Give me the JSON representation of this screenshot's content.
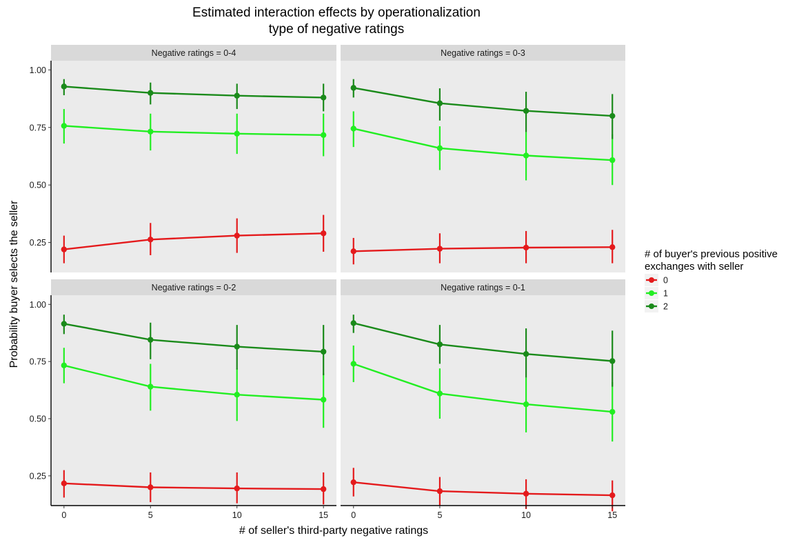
{
  "chart_data": {
    "type": "line",
    "title_lines": [
      "Estimated interaction effects by operationalization",
      "type of negative ratings"
    ],
    "xlabel": "# of seller's third-party negative ratings",
    "ylabel": "Probability buyer selects the seller",
    "x": [
      0,
      5,
      10,
      15
    ],
    "x_ticks": [
      "0",
      "5",
      "10",
      "15"
    ],
    "y_ticks": [
      "0.25",
      "0.50",
      "0.75",
      "1.00"
    ],
    "y_tick_values": [
      0.25,
      0.5,
      0.75,
      1.0
    ],
    "xlim": [
      -0.75,
      15.75
    ],
    "ylim": [
      0.12,
      1.04
    ],
    "grid": false,
    "legend": {
      "title_lines": [
        "# of buyer's previous positive",
        "exchanges with seller"
      ],
      "position": "right"
    },
    "series_styles": [
      {
        "name": "0",
        "color": "#e41a1c"
      },
      {
        "name": "1",
        "color": "#22ee22"
      },
      {
        "name": "2",
        "color": "#1a8a1a"
      }
    ],
    "panels": [
      {
        "label": "Negative ratings = 0-4",
        "series": [
          {
            "name": "0",
            "values": [
              0.22,
              0.263,
              0.28,
              0.29
            ],
            "lower": [
              0.16,
              0.195,
              0.205,
              0.21
            ],
            "upper": [
              0.28,
              0.335,
              0.355,
              0.37
            ]
          },
          {
            "name": "1",
            "values": [
              0.757,
              0.732,
              0.723,
              0.717
            ],
            "lower": [
              0.68,
              0.65,
              0.635,
              0.625
            ],
            "upper": [
              0.83,
              0.81,
              0.81,
              0.81
            ]
          },
          {
            "name": "2",
            "values": [
              0.928,
              0.9,
              0.888,
              0.88
            ],
            "lower": [
              0.89,
              0.85,
              0.83,
              0.82
            ],
            "upper": [
              0.96,
              0.945,
              0.94,
              0.94
            ]
          }
        ]
      },
      {
        "label": "Negative ratings = 0-3",
        "series": [
          {
            "name": "0",
            "values": [
              0.212,
              0.223,
              0.228,
              0.23
            ],
            "lower": [
              0.155,
              0.16,
              0.16,
              0.16
            ],
            "upper": [
              0.27,
              0.29,
              0.3,
              0.305
            ]
          },
          {
            "name": "1",
            "values": [
              0.745,
              0.66,
              0.628,
              0.608
            ],
            "lower": [
              0.665,
              0.565,
              0.52,
              0.5
            ],
            "upper": [
              0.82,
              0.755,
              0.73,
              0.72
            ]
          },
          {
            "name": "2",
            "values": [
              0.922,
              0.855,
              0.822,
              0.8
            ],
            "lower": [
              0.88,
              0.78,
              0.73,
              0.7
            ],
            "upper": [
              0.96,
              0.92,
              0.905,
              0.895
            ]
          }
        ]
      },
      {
        "label": "Negative ratings = 0-2",
        "series": [
          {
            "name": "0",
            "values": [
              0.217,
              0.2,
              0.195,
              0.192
            ],
            "lower": [
              0.155,
              0.135,
              0.13,
              0.125
            ],
            "upper": [
              0.275,
              0.265,
              0.265,
              0.265
            ]
          },
          {
            "name": "1",
            "values": [
              0.733,
              0.64,
              0.605,
              0.583
            ],
            "lower": [
              0.655,
              0.535,
              0.49,
              0.46
            ],
            "upper": [
              0.81,
              0.74,
              0.72,
              0.7
            ]
          },
          {
            "name": "2",
            "values": [
              0.915,
              0.845,
              0.815,
              0.793
            ],
            "lower": [
              0.87,
              0.76,
              0.715,
              0.69
            ],
            "upper": [
              0.955,
              0.92,
              0.91,
              0.91
            ]
          }
        ]
      },
      {
        "label": "Negative ratings = 0-1",
        "series": [
          {
            "name": "0",
            "values": [
              0.222,
              0.183,
              0.172,
              0.165
            ],
            "lower": [
              0.16,
              0.12,
              0.105,
              0.095
            ],
            "upper": [
              0.285,
              0.245,
              0.235,
              0.23
            ]
          },
          {
            "name": "1",
            "values": [
              0.74,
              0.61,
              0.563,
              0.53
            ],
            "lower": [
              0.66,
              0.5,
              0.44,
              0.4
            ],
            "upper": [
              0.82,
              0.72,
              0.68,
              0.66
            ]
          },
          {
            "name": "2",
            "values": [
              0.918,
              0.825,
              0.783,
              0.752
            ],
            "lower": [
              0.875,
              0.74,
              0.68,
              0.64
            ],
            "upper": [
              0.955,
              0.91,
              0.895,
              0.885
            ]
          }
        ]
      }
    ]
  }
}
